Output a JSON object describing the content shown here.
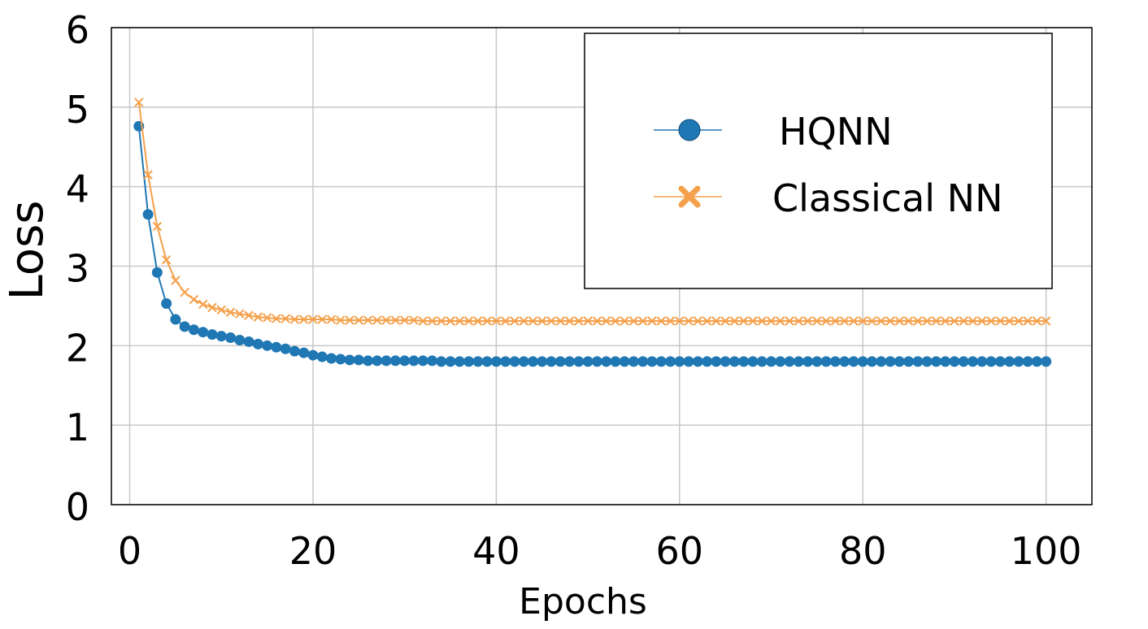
{
  "chart_data": {
    "type": "line",
    "title": "",
    "xlabel": "Epochs",
    "ylabel": "Loss",
    "xlim": [
      -2,
      105
    ],
    "ylim": [
      0,
      6
    ],
    "xticks": [
      0,
      20,
      40,
      60,
      80,
      100
    ],
    "yticks": [
      0,
      1,
      2,
      3,
      4,
      5,
      6
    ],
    "grid": true,
    "legend_position": "top-right",
    "series": [
      {
        "name": "HQNN",
        "color": "#1f77b4",
        "marker": "circle",
        "x": [
          1,
          2,
          3,
          4,
          5,
          6,
          7,
          8,
          9,
          10,
          11,
          12,
          13,
          14,
          15,
          16,
          17,
          18,
          19,
          20,
          21,
          22,
          23,
          24,
          25,
          26,
          27,
          28,
          29,
          30,
          31,
          32,
          33,
          34,
          35,
          36,
          37,
          38,
          39,
          40,
          41,
          42,
          43,
          44,
          45,
          46,
          47,
          48,
          49,
          50,
          51,
          52,
          53,
          54,
          55,
          56,
          57,
          58,
          59,
          60,
          61,
          62,
          63,
          64,
          65,
          66,
          67,
          68,
          69,
          70,
          71,
          72,
          73,
          74,
          75,
          76,
          77,
          78,
          79,
          80,
          81,
          82,
          83,
          84,
          85,
          86,
          87,
          88,
          89,
          90,
          91,
          92,
          93,
          94,
          95,
          96,
          97,
          98,
          99,
          100
        ],
        "y": [
          4.76,
          3.65,
          2.92,
          2.53,
          2.33,
          2.24,
          2.2,
          2.17,
          2.14,
          2.12,
          2.1,
          2.07,
          2.05,
          2.02,
          2.0,
          1.98,
          1.96,
          1.93,
          1.91,
          1.88,
          1.86,
          1.84,
          1.83,
          1.82,
          1.82,
          1.81,
          1.81,
          1.81,
          1.81,
          1.81,
          1.81,
          1.81,
          1.81,
          1.8,
          1.8,
          1.8,
          1.8,
          1.8,
          1.8,
          1.8,
          1.8,
          1.8,
          1.8,
          1.8,
          1.8,
          1.8,
          1.8,
          1.8,
          1.8,
          1.8,
          1.8,
          1.8,
          1.8,
          1.8,
          1.8,
          1.8,
          1.8,
          1.8,
          1.8,
          1.8,
          1.8,
          1.8,
          1.8,
          1.8,
          1.8,
          1.8,
          1.8,
          1.8,
          1.8,
          1.8,
          1.8,
          1.8,
          1.8,
          1.8,
          1.8,
          1.8,
          1.8,
          1.8,
          1.8,
          1.8,
          1.8,
          1.8,
          1.8,
          1.8,
          1.8,
          1.8,
          1.8,
          1.8,
          1.8,
          1.8,
          1.8,
          1.8,
          1.8,
          1.8,
          1.8,
          1.8,
          1.8,
          1.8,
          1.8,
          1.8
        ]
      },
      {
        "name": "Classical NN",
        "color": "#f5a04a",
        "marker": "x",
        "x": [
          1,
          2,
          3,
          4,
          5,
          6,
          7,
          8,
          9,
          10,
          11,
          12,
          13,
          14,
          15,
          16,
          17,
          18,
          19,
          20,
          21,
          22,
          23,
          24,
          25,
          26,
          27,
          28,
          29,
          30,
          31,
          32,
          33,
          34,
          35,
          36,
          37,
          38,
          39,
          40,
          41,
          42,
          43,
          44,
          45,
          46,
          47,
          48,
          49,
          50,
          51,
          52,
          53,
          54,
          55,
          56,
          57,
          58,
          59,
          60,
          61,
          62,
          63,
          64,
          65,
          66,
          67,
          68,
          69,
          70,
          71,
          72,
          73,
          74,
          75,
          76,
          77,
          78,
          79,
          80,
          81,
          82,
          83,
          84,
          85,
          86,
          87,
          88,
          89,
          90,
          91,
          92,
          93,
          94,
          95,
          96,
          97,
          98,
          99,
          100
        ],
        "y": [
          5.06,
          4.15,
          3.5,
          3.08,
          2.82,
          2.67,
          2.58,
          2.52,
          2.48,
          2.45,
          2.42,
          2.4,
          2.38,
          2.36,
          2.35,
          2.34,
          2.34,
          2.33,
          2.33,
          2.33,
          2.33,
          2.33,
          2.32,
          2.32,
          2.32,
          2.32,
          2.32,
          2.32,
          2.32,
          2.32,
          2.32,
          2.31,
          2.31,
          2.31,
          2.31,
          2.31,
          2.31,
          2.31,
          2.31,
          2.31,
          2.31,
          2.31,
          2.31,
          2.31,
          2.31,
          2.31,
          2.31,
          2.31,
          2.31,
          2.31,
          2.31,
          2.31,
          2.31,
          2.31,
          2.31,
          2.31,
          2.31,
          2.31,
          2.31,
          2.31,
          2.31,
          2.31,
          2.31,
          2.31,
          2.31,
          2.31,
          2.31,
          2.31,
          2.31,
          2.31,
          2.31,
          2.31,
          2.31,
          2.31,
          2.31,
          2.31,
          2.31,
          2.31,
          2.31,
          2.31,
          2.31,
          2.31,
          2.31,
          2.31,
          2.31,
          2.31,
          2.31,
          2.31,
          2.31,
          2.31,
          2.31,
          2.31,
          2.31,
          2.31,
          2.31,
          2.31,
          2.31,
          2.31,
          2.31,
          2.31
        ]
      }
    ]
  }
}
